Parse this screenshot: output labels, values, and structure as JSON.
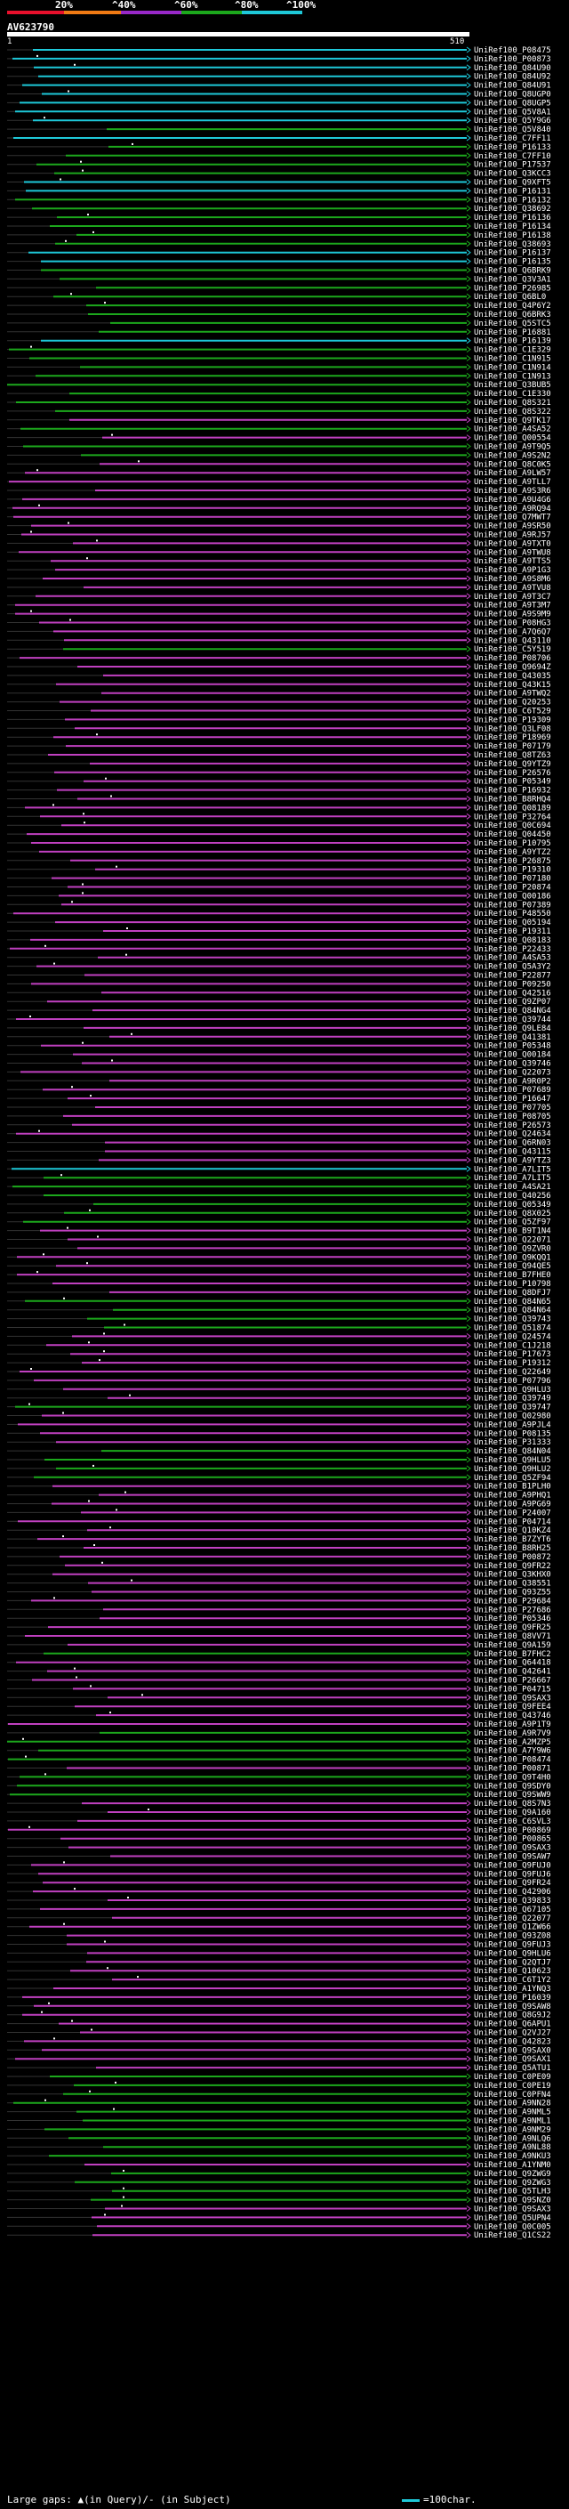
{
  "legend": {
    "percent_labels": [
      "20%",
      "^40%",
      "^60%",
      "^80%",
      "^100%"
    ],
    "colors": [
      "#e8102c",
      "#f07a14",
      "#9828c8",
      "#1ca81c",
      "#1ec8d8"
    ]
  },
  "query": {
    "name": "AV623790",
    "start": "1",
    "end": "510"
  },
  "footer": {
    "large_gaps": "Large gaps: ▲(in Query)/- (in Subject)",
    "scale": "=100char."
  },
  "hit_colors": {
    "cyan": "#1ec8d8",
    "green": "#1ca81c",
    "magenta": "#c040c0"
  },
  "hits": [
    {
      "id": "UniRef100_P08475",
      "c": "cyan"
    },
    {
      "id": "UniRef100_P00873",
      "c": "cyan"
    },
    {
      "id": "UniRef100_Q84U90",
      "c": "cyan"
    },
    {
      "id": "UniRef100_Q84U92",
      "c": "cyan"
    },
    {
      "id": "UniRef100_Q84U91",
      "c": "cyan"
    },
    {
      "id": "UniRef100_Q8UGP0",
      "c": "cyan"
    },
    {
      "id": "UniRef100_Q8UGP5",
      "c": "cyan"
    },
    {
      "id": "UniRef100_Q5V8A1",
      "c": "cyan"
    },
    {
      "id": "UniRef100_Q5Y9G6",
      "c": "cyan"
    },
    {
      "id": "UniRef100_Q5V840",
      "c": "green"
    },
    {
      "id": "UniRef100_C7FF11",
      "c": "cyan"
    },
    {
      "id": "UniRef100_P16133",
      "c": "green"
    },
    {
      "id": "UniRef100_C7FF10",
      "c": "green"
    },
    {
      "id": "UniRef100_P17537",
      "c": "green"
    },
    {
      "id": "UniRef100_Q3KCC3",
      "c": "green"
    },
    {
      "id": "UniRef100_Q9XFT5",
      "c": "cyan"
    },
    {
      "id": "UniRef100_P16131",
      "c": "cyan"
    },
    {
      "id": "UniRef100_P16132",
      "c": "green"
    },
    {
      "id": "UniRef100_Q38692",
      "c": "green"
    },
    {
      "id": "UniRef100_P16136",
      "c": "green"
    },
    {
      "id": "UniRef100_P16134",
      "c": "green"
    },
    {
      "id": "UniRef100_P16138",
      "c": "green"
    },
    {
      "id": "UniRef100_Q38693",
      "c": "green"
    },
    {
      "id": "UniRef100_P16137",
      "c": "cyan"
    },
    {
      "id": "UniRef100_P16135",
      "c": "cyan"
    },
    {
      "id": "UniRef100_Q6BRK9",
      "c": "green"
    },
    {
      "id": "UniRef100_Q3V3A1",
      "c": "green"
    },
    {
      "id": "UniRef100_P26985",
      "c": "green"
    },
    {
      "id": "UniRef100_Q6BL0",
      "c": "green"
    },
    {
      "id": "UniRef100_Q4P6Y2",
      "c": "green"
    },
    {
      "id": "UniRef100_Q6BRK3",
      "c": "green"
    },
    {
      "id": "UniRef100_Q5STC5",
      "c": "green"
    },
    {
      "id": "UniRef100_P16881",
      "c": "green"
    },
    {
      "id": "UniRef100_P16139",
      "c": "cyan"
    },
    {
      "id": "UniRef100_C1E329",
      "c": "green"
    },
    {
      "id": "UniRef100_C1N915",
      "c": "green"
    },
    {
      "id": "UniRef100_C1N914",
      "c": "green"
    },
    {
      "id": "UniRef100_C1N913",
      "c": "green"
    },
    {
      "id": "UniRef100_Q3BUB5",
      "c": "green"
    },
    {
      "id": "UniRef100_C1E330",
      "c": "green"
    },
    {
      "id": "UniRef100_Q8S321",
      "c": "green"
    },
    {
      "id": "UniRef100_Q8S322",
      "c": "green"
    },
    {
      "id": "UniRef100_Q9TK17",
      "c": "magenta"
    },
    {
      "id": "UniRef100_A4SA52",
      "c": "green"
    },
    {
      "id": "UniRef100_Q00554",
      "c": "magenta"
    },
    {
      "id": "UniRef100_A9T9Q5",
      "c": "green"
    },
    {
      "id": "UniRef100_A9S2N2",
      "c": "green"
    },
    {
      "id": "UniRef100_Q8C0K5",
      "c": "magenta"
    },
    {
      "id": "UniRef100_A9LW57",
      "c": "magenta"
    },
    {
      "id": "UniRef100_A9TLL7",
      "c": "magenta"
    },
    {
      "id": "UniRef100_A9S3R6",
      "c": "magenta"
    },
    {
      "id": "UniRef100_A9U4G6",
      "c": "magenta"
    },
    {
      "id": "UniRef100_A9RQ94",
      "c": "magenta"
    },
    {
      "id": "UniRef100_Q7MWT7",
      "c": "magenta"
    },
    {
      "id": "UniRef100_A9SR50",
      "c": "magenta"
    },
    {
      "id": "UniRef100_A9RJ57",
      "c": "magenta"
    },
    {
      "id": "UniRef100_A9TXT0",
      "c": "magenta"
    },
    {
      "id": "UniRef100_A9TWU8",
      "c": "magenta"
    },
    {
      "id": "UniRef100_A9TTS5",
      "c": "magenta"
    },
    {
      "id": "UniRef100_A9P1G3",
      "c": "magenta"
    },
    {
      "id": "UniRef100_A9S8M6",
      "c": "magenta"
    },
    {
      "id": "UniRef100_A9TVU8",
      "c": "magenta"
    },
    {
      "id": "UniRef100_A9T3C7",
      "c": "magenta"
    },
    {
      "id": "UniRef100_A9T3M7",
      "c": "magenta"
    },
    {
      "id": "UniRef100_A9S9M9",
      "c": "magenta"
    },
    {
      "id": "UniRef100_P08HG3",
      "c": "magenta"
    },
    {
      "id": "UniRef100_A7Q6Q7",
      "c": "magenta"
    },
    {
      "id": "UniRef100_Q43110",
      "c": "magenta"
    },
    {
      "id": "UniRef100_C5Y519",
      "c": "green"
    },
    {
      "id": "UniRef100_P08706",
      "c": "magenta"
    },
    {
      "id": "UniRef100_Q9694Z",
      "c": "magenta"
    },
    {
      "id": "UniRef100_Q43035",
      "c": "magenta"
    },
    {
      "id": "UniRef100_Q43K15",
      "c": "magenta"
    },
    {
      "id": "UniRef100_A9TWQ2",
      "c": "magenta"
    },
    {
      "id": "UniRef100_Q20253",
      "c": "magenta"
    },
    {
      "id": "UniRef100_C6T529",
      "c": "magenta"
    },
    {
      "id": "UniRef100_P19309",
      "c": "magenta"
    },
    {
      "id": "UniRef100_Q3LF08",
      "c": "magenta"
    },
    {
      "id": "UniRef100_P18969",
      "c": "magenta"
    },
    {
      "id": "UniRef100_P07179",
      "c": "magenta"
    },
    {
      "id": "UniRef100_Q8TZ63",
      "c": "magenta"
    },
    {
      "id": "UniRef100_Q9YTZ9",
      "c": "magenta"
    },
    {
      "id": "UniRef100_P26576",
      "c": "magenta"
    },
    {
      "id": "UniRef100_P05349",
      "c": "magenta"
    },
    {
      "id": "UniRef100_P16932",
      "c": "magenta"
    },
    {
      "id": "UniRef100_B8RHQ4",
      "c": "magenta"
    },
    {
      "id": "UniRef100_Q08189",
      "c": "magenta"
    },
    {
      "id": "UniRef100_P32764",
      "c": "magenta"
    },
    {
      "id": "UniRef100_Q0C694",
      "c": "magenta"
    },
    {
      "id": "UniRef100_Q04450",
      "c": "magenta"
    },
    {
      "id": "UniRef100_P10795",
      "c": "magenta"
    },
    {
      "id": "UniRef100_A9YTZ2",
      "c": "magenta"
    },
    {
      "id": "UniRef100_P26875",
      "c": "magenta"
    },
    {
      "id": "UniRef100_P19310",
      "c": "magenta"
    },
    {
      "id": "UniRef100_P07180",
      "c": "magenta"
    },
    {
      "id": "UniRef100_P20874",
      "c": "magenta"
    },
    {
      "id": "UniRef100_Q00186",
      "c": "magenta"
    },
    {
      "id": "UniRef100_P07389",
      "c": "magenta"
    },
    {
      "id": "UniRef100_P48550",
      "c": "magenta"
    },
    {
      "id": "UniRef100_Q05194",
      "c": "magenta"
    },
    {
      "id": "UniRef100_P19311",
      "c": "magenta"
    },
    {
      "id": "UniRef100_Q08183",
      "c": "magenta"
    },
    {
      "id": "UniRef100_P22433",
      "c": "magenta"
    },
    {
      "id": "UniRef100_A4SA53",
      "c": "magenta"
    },
    {
      "id": "UniRef100_Q5A3Y2",
      "c": "magenta"
    },
    {
      "id": "UniRef100_P22877",
      "c": "magenta"
    },
    {
      "id": "UniRef100_P09250",
      "c": "magenta"
    },
    {
      "id": "UniRef100_Q42516",
      "c": "magenta"
    },
    {
      "id": "UniRef100_Q9ZP07",
      "c": "magenta"
    },
    {
      "id": "UniRef100_Q84NG4",
      "c": "magenta"
    },
    {
      "id": "UniRef100_Q39744",
      "c": "magenta"
    },
    {
      "id": "UniRef100_Q9LE84",
      "c": "magenta"
    },
    {
      "id": "UniRef100_Q41381",
      "c": "magenta"
    },
    {
      "id": "UniRef100_P05348",
      "c": "magenta"
    },
    {
      "id": "UniRef100_Q00184",
      "c": "magenta"
    },
    {
      "id": "UniRef100_Q39746",
      "c": "magenta"
    },
    {
      "id": "UniRef100_Q22073",
      "c": "magenta"
    },
    {
      "id": "UniRef100_A9R0P2",
      "c": "magenta"
    },
    {
      "id": "UniRef100_P07689",
      "c": "magenta"
    },
    {
      "id": "UniRef100_P16647",
      "c": "magenta"
    },
    {
      "id": "UniRef100_P07705",
      "c": "magenta"
    },
    {
      "id": "UniRef100_P08705",
      "c": "magenta"
    },
    {
      "id": "UniRef100_P26573",
      "c": "magenta"
    },
    {
      "id": "UniRef100_Q24634",
      "c": "magenta"
    },
    {
      "id": "UniRef100_Q6RN03",
      "c": "magenta"
    },
    {
      "id": "UniRef100_Q43115",
      "c": "magenta"
    },
    {
      "id": "UniRef100_A9YTZ3",
      "c": "magenta"
    },
    {
      "id": "UniRef100_A7LIT5",
      "c": "cyan"
    },
    {
      "id": "UniRef100_A7LIT5",
      "c": "green"
    },
    {
      "id": "UniRef100_A4SA21",
      "c": "green"
    },
    {
      "id": "UniRef100_Q40256",
      "c": "green"
    },
    {
      "id": "UniRef100_Q05349",
      "c": "green"
    },
    {
      "id": "UniRef100_Q8X025",
      "c": "green"
    },
    {
      "id": "UniRef100_Q5ZF97",
      "c": "green"
    },
    {
      "id": "UniRef100_B9T1N4",
      "c": "magenta"
    },
    {
      "id": "UniRef100_Q22071",
      "c": "magenta"
    },
    {
      "id": "UniRef100_Q9ZVR0",
      "c": "magenta"
    },
    {
      "id": "UniRef100_Q9KQQ1",
      "c": "magenta"
    },
    {
      "id": "UniRef100_Q94QE5",
      "c": "magenta"
    },
    {
      "id": "UniRef100_B7FHE0",
      "c": "magenta"
    },
    {
      "id": "UniRef100_P10798",
      "c": "magenta"
    },
    {
      "id": "UniRef100_Q8DFJ7",
      "c": "magenta"
    },
    {
      "id": "UniRef100_Q84N65",
      "c": "green"
    },
    {
      "id": "UniRef100_Q84N64",
      "c": "green"
    },
    {
      "id": "UniRef100_Q39743",
      "c": "green"
    },
    {
      "id": "UniRef100_Q51874",
      "c": "green"
    },
    {
      "id": "UniRef100_Q24574",
      "c": "magenta"
    },
    {
      "id": "UniRef100_C1J218",
      "c": "magenta"
    },
    {
      "id": "UniRef100_P17673",
      "c": "magenta"
    },
    {
      "id": "UniRef100_P19312",
      "c": "magenta"
    },
    {
      "id": "UniRef100_Q22649",
      "c": "magenta"
    },
    {
      "id": "UniRef100_P07796",
      "c": "magenta"
    },
    {
      "id": "UniRef100_Q9HLU3",
      "c": "magenta"
    },
    {
      "id": "UniRef100_Q39749",
      "c": "magenta"
    },
    {
      "id": "UniRef100_Q39747",
      "c": "green"
    },
    {
      "id": "UniRef100_Q02980",
      "c": "magenta"
    },
    {
      "id": "UniRef100_A9PJL4",
      "c": "magenta"
    },
    {
      "id": "UniRef100_P08135",
      "c": "magenta"
    },
    {
      "id": "UniRef100_P31333",
      "c": "magenta"
    },
    {
      "id": "UniRef100_Q84N04",
      "c": "green"
    },
    {
      "id": "UniRef100_Q9HLU5",
      "c": "green"
    },
    {
      "id": "UniRef100_Q9HLU2",
      "c": "green"
    },
    {
      "id": "UniRef100_Q5ZF94",
      "c": "green"
    },
    {
      "id": "UniRef100_B1PLH0",
      "c": "magenta"
    },
    {
      "id": "UniRef100_A9PHQ1",
      "c": "magenta"
    },
    {
      "id": "UniRef100_A9PG69",
      "c": "magenta"
    },
    {
      "id": "UniRef100_P24007",
      "c": "magenta"
    },
    {
      "id": "UniRef100_P04714",
      "c": "magenta"
    },
    {
      "id": "UniRef100_Q10KZ4",
      "c": "magenta"
    },
    {
      "id": "UniRef100_B7ZYT6",
      "c": "magenta"
    },
    {
      "id": "UniRef100_B8RH25",
      "c": "magenta"
    },
    {
      "id": "UniRef100_P00872",
      "c": "magenta"
    },
    {
      "id": "UniRef100_Q9FR22",
      "c": "magenta"
    },
    {
      "id": "UniRef100_Q3KHX0",
      "c": "magenta"
    },
    {
      "id": "UniRef100_Q38551",
      "c": "magenta"
    },
    {
      "id": "UniRef100_Q93Z55",
      "c": "magenta"
    },
    {
      "id": "UniRef100_P29684",
      "c": "magenta"
    },
    {
      "id": "UniRef100_P27686",
      "c": "magenta"
    },
    {
      "id": "UniRef100_P05346",
      "c": "magenta"
    },
    {
      "id": "UniRef100_Q9FR25",
      "c": "magenta"
    },
    {
      "id": "UniRef100_Q8VV71",
      "c": "magenta"
    },
    {
      "id": "UniRef100_Q9A159",
      "c": "magenta"
    },
    {
      "id": "UniRef100_B7FHC2",
      "c": "green"
    },
    {
      "id": "UniRef100_Q64418",
      "c": "magenta"
    },
    {
      "id": "UniRef100_Q42641",
      "c": "magenta"
    },
    {
      "id": "UniRef100_P26667",
      "c": "magenta"
    },
    {
      "id": "UniRef100_P04715",
      "c": "magenta"
    },
    {
      "id": "UniRef100_Q9SAX3",
      "c": "magenta"
    },
    {
      "id": "UniRef100_Q9FEE4",
      "c": "magenta"
    },
    {
      "id": "UniRef100_Q43746",
      "c": "magenta"
    },
    {
      "id": "UniRef100_A9P1T9",
      "c": "magenta"
    },
    {
      "id": "UniRef100_A9R7V9",
      "c": "green"
    },
    {
      "id": "UniRef100_A2MZP5",
      "c": "green"
    },
    {
      "id": "UniRef100_A7Y9W6",
      "c": "green"
    },
    {
      "id": "UniRef100_P08474",
      "c": "green"
    },
    {
      "id": "UniRef100_P00871",
      "c": "magenta"
    },
    {
      "id": "UniRef100_Q9T4H0",
      "c": "green"
    },
    {
      "id": "UniRef100_Q9SDY0",
      "c": "green"
    },
    {
      "id": "UniRef100_Q9SWW9",
      "c": "green"
    },
    {
      "id": "UniRef100_Q8S7N3",
      "c": "magenta"
    },
    {
      "id": "UniRef100_Q9A160",
      "c": "magenta"
    },
    {
      "id": "UniRef100_C6SVL3",
      "c": "magenta"
    },
    {
      "id": "UniRef100_P00869",
      "c": "magenta"
    },
    {
      "id": "UniRef100_P00865",
      "c": "magenta"
    },
    {
      "id": "UniRef100_Q9SAX3",
      "c": "magenta"
    },
    {
      "id": "UniRef100_Q9SAW7",
      "c": "magenta"
    },
    {
      "id": "UniRef100_Q9FUJ0",
      "c": "magenta"
    },
    {
      "id": "UniRef100_Q9FUJ6",
      "c": "magenta"
    },
    {
      "id": "UniRef100_Q9FR24",
      "c": "magenta"
    },
    {
      "id": "UniRef100_Q42906",
      "c": "magenta"
    },
    {
      "id": "UniRef100_Q39833",
      "c": "magenta"
    },
    {
      "id": "UniRef100_Q67105",
      "c": "magenta"
    },
    {
      "id": "UniRef100_Q22077",
      "c": "magenta"
    },
    {
      "id": "UniRef100_Q1ZW66",
      "c": "magenta"
    },
    {
      "id": "UniRef100_Q93Z08",
      "c": "magenta"
    },
    {
      "id": "UniRef100_Q9FUJ3",
      "c": "magenta"
    },
    {
      "id": "UniRef100_Q9HLU6",
      "c": "magenta"
    },
    {
      "id": "UniRef100_Q2QTJ7",
      "c": "magenta"
    },
    {
      "id": "UniRef100_Q10623",
      "c": "magenta"
    },
    {
      "id": "UniRef100_C6T1Y2",
      "c": "magenta"
    },
    {
      "id": "UniRef100_A1YNQ3",
      "c": "magenta"
    },
    {
      "id": "UniRef100_P16039",
      "c": "magenta"
    },
    {
      "id": "UniRef100_Q9SAW8",
      "c": "magenta"
    },
    {
      "id": "UniRef100_Q8G9J2",
      "c": "magenta"
    },
    {
      "id": "UniRef100_Q6APU1",
      "c": "magenta"
    },
    {
      "id": "UniRef100_Q2VJ27",
      "c": "magenta"
    },
    {
      "id": "UniRef100_Q42823",
      "c": "magenta"
    },
    {
      "id": "UniRef100_Q9SAX0",
      "c": "magenta"
    },
    {
      "id": "UniRef100_Q9SAX1",
      "c": "magenta"
    },
    {
      "id": "UniRef100_Q5ATU1",
      "c": "magenta"
    },
    {
      "id": "UniRef100_C0PE09",
      "c": "green"
    },
    {
      "id": "UniRef100_C0PE19",
      "c": "green"
    },
    {
      "id": "UniRef100_C0PFN4",
      "c": "green"
    },
    {
      "id": "UniRef100_A9NN28",
      "c": "green"
    },
    {
      "id": "UniRef100_A9NML5",
      "c": "green"
    },
    {
      "id": "UniRef100_A9NML1",
      "c": "green"
    },
    {
      "id": "UniRef100_A9NM29",
      "c": "green"
    },
    {
      "id": "UniRef100_A9NLQ6",
      "c": "green"
    },
    {
      "id": "UniRef100_A9NL88",
      "c": "green"
    },
    {
      "id": "UniRef100_A9NKU3",
      "c": "green"
    },
    {
      "id": "UniRef100_A1YNM0",
      "c": "magenta"
    },
    {
      "id": "UniRef100_Q9ZWG9",
      "c": "green"
    },
    {
      "id": "UniRef100_Q9ZWG3",
      "c": "green"
    },
    {
      "id": "UniRef100_Q5TLH3",
      "c": "green"
    },
    {
      "id": "UniRef100_Q9SNZ0",
      "c": "green"
    },
    {
      "id": "UniRef100_Q9SAX3",
      "c": "magenta"
    },
    {
      "id": "UniRef100_Q5UPN4",
      "c": "magenta"
    },
    {
      "id": "UniRef100_Q0C005",
      "c": "magenta"
    },
    {
      "id": "UniRef100_Q1CS22",
      "c": "magenta"
    }
  ]
}
